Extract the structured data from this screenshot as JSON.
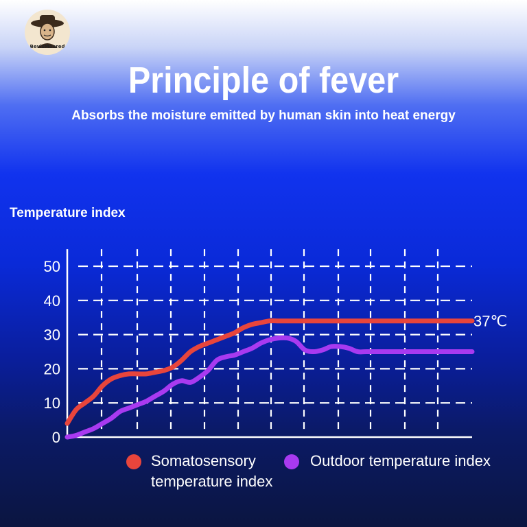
{
  "brand": {
    "logo_text": "BevisMoored"
  },
  "header": {
    "title": "Principle of fever",
    "subtitle": "Absorbs the moisture emitted by human skin into heat energy"
  },
  "colors": {
    "series_somatosensory": "#e8453c",
    "series_outdoor": "#a83af0"
  },
  "chart_data": {
    "type": "line",
    "title": "",
    "ylabel": "Temperature index",
    "xlabel": "",
    "ylim": [
      0,
      55
    ],
    "yticks": [
      0,
      10,
      20,
      30,
      40,
      50
    ],
    "grid": true,
    "legend_position": "bottom",
    "x": [
      0,
      0.25,
      0.5,
      0.75,
      1,
      1.25,
      1.5,
      1.75,
      2,
      2.25,
      2.5,
      2.75,
      3,
      3.25,
      3.5,
      3.75,
      4,
      4.25,
      4.5,
      4.75,
      5,
      5.25,
      5.5,
      5.75,
      6,
      6.25,
      6.5,
      6.75,
      7,
      7.25,
      7.5,
      7.75,
      8,
      8.25,
      8.5,
      8.75,
      9,
      9.25,
      9.5,
      9.75,
      10,
      10.25,
      10.5,
      10.75,
      11,
      11.25,
      11.5
    ],
    "series": [
      {
        "name": "Somatosensory temperature index",
        "color": "#e8453c",
        "values": [
          4,
          8,
          10,
          12,
          15,
          17,
          18,
          18.5,
          18.5,
          18.5,
          19,
          19.5,
          20.5,
          22.5,
          25,
          26.5,
          27.5,
          28.5,
          29.5,
          30.5,
          32,
          33,
          33.5,
          34,
          34,
          34,
          34,
          34,
          34,
          34,
          34,
          34,
          34,
          34,
          34,
          34,
          34,
          34,
          34,
          34,
          34,
          34,
          34,
          34,
          34,
          34,
          34
        ],
        "end_label": "37℃"
      },
      {
        "name": "Outdoor temperature index",
        "color": "#a83af0",
        "values": [
          0,
          0.5,
          1.5,
          2.5,
          4,
          5.5,
          7.5,
          8.5,
          9.5,
          10.5,
          12,
          13.5,
          15.5,
          16.5,
          16,
          17.5,
          19.5,
          22.5,
          23.5,
          24,
          25,
          26,
          27.5,
          28.5,
          29,
          29,
          28,
          25.5,
          25,
          25.5,
          26.5,
          26.5,
          26,
          25,
          25,
          25,
          25,
          25,
          25,
          25,
          25,
          25,
          25,
          25,
          25,
          25,
          25
        ]
      }
    ]
  },
  "legend": {
    "somatosensory_line1": "Somatosensory",
    "somatosensory_line2": "temperature index",
    "outdoor": "Outdoor temperature index"
  }
}
